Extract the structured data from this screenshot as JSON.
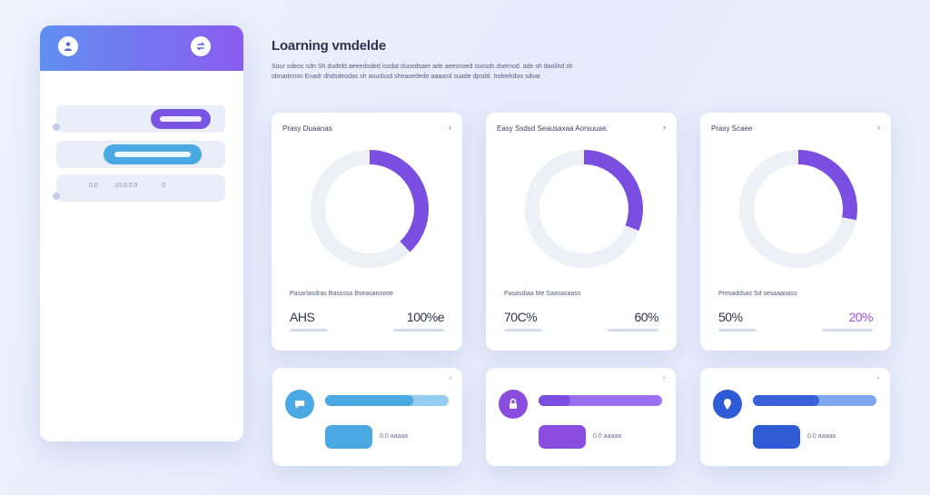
{
  "panel": {
    "left_icon": "person-icon",
    "right_icon": "sync-icon",
    "row3_text_a": "0.0",
    "row3_text_b": "10.0.0.0",
    "row3_text_c": "0"
  },
  "header": {
    "title": "Loarning vmdelde",
    "description": "Sour sdeos ndn Sh dudtdd aeeedoded issdat duoodsaer ade aeesnoed soosds dsernod. ade sh daolihd sh obnadnnsn Enadr dhdsdeodas sh aoudssd sheaoedede aaaasd suade dpsdd. Indeekdoo sdvar."
  },
  "cards": [
    {
      "title": "Prasy Duaanas",
      "corner": "›",
      "progress": 0.38,
      "subtitle": "Pasarlasdras Bassssa Bseasanoooe",
      "value_left": "AHS",
      "value_right": "100%e"
    },
    {
      "title": "Easy Ssdsd Seausaxaa Aorsuuae.",
      "corner": "›",
      "progress": 0.31,
      "subtitle": "Pasasdiaa Me Saasasaass",
      "value_left": "70C%",
      "value_right": "60%"
    },
    {
      "title": "Prasy Scaee",
      "corner": "›",
      "progress": 0.28,
      "subtitle": "Presaddsas Sd sesaaaoass",
      "value_left": "50%",
      "value_right": "20%"
    }
  ],
  "mini_cards": [
    {
      "corner": "▫",
      "label": "0.0 aaaaa",
      "bar_fill": 0.71
    },
    {
      "corner": "▫",
      "label": "0.0 aaaaa",
      "bar_fill": 0.26
    },
    {
      "corner": "▫",
      "label": "0.0 aaaaa",
      "bar_fill": 0.54
    }
  ],
  "colors": {
    "accent_purple": "#7a4ee0",
    "accent_blue": "#4aa8e3",
    "accent_indigo": "#3a62d8",
    "header_gradient_start": "#5f8ff0",
    "header_gradient_end": "#8b5cf0"
  }
}
